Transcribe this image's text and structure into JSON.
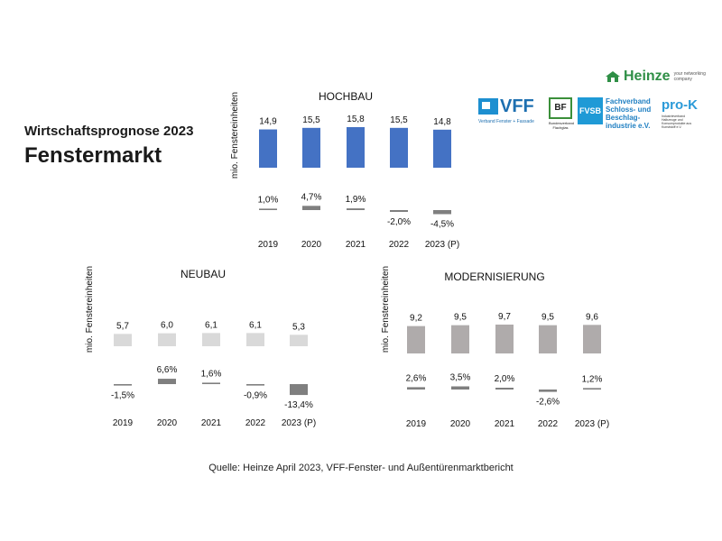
{
  "headline": {
    "subtitle": "Wirtschaftsprognose 2023",
    "title": "Fenstermarkt"
  },
  "source": "Quelle: Heinze April 2023, VFF-Fenster- und Außentürenmarktbericht",
  "logos": {
    "heinze": {
      "name": "Heinze",
      "tagline": "your networking company"
    },
    "vff": {
      "name": "VFF",
      "caption": "Verband Fenster + Fassade"
    },
    "bf": {
      "name": "BF",
      "caption": "Bundesverband Flachglas"
    },
    "fvsb": {
      "name": "FVSB",
      "caption": "Fachverband Schloss- und Beschlag-industrie e.V."
    },
    "prox": {
      "name": "pro-K",
      "caption": "Industrieverband Halbzeuge und Konsumprodukte aus Kunststoff e.V."
    }
  },
  "colors": {
    "hochbau_bar": "#4472C4",
    "neubau_bar": "#D9D9D9",
    "modernisierung_bar": "#AFABAB",
    "change_bar": "#7F7F7F"
  },
  "chart_data": [
    {
      "type": "bar",
      "title": "HOCHBAU",
      "ylabel": "mio. Fenstereinheiten",
      "categories": [
        "2019",
        "2020",
        "2021",
        "2022",
        "2023 (P)"
      ],
      "values": [
        14.9,
        15.5,
        15.8,
        15.5,
        14.8
      ],
      "value_labels": [
        "14,9",
        "15,5",
        "15,8",
        "15,5",
        "14,8"
      ],
      "changes": [
        1.0,
        4.7,
        1.9,
        -2.0,
        -4.5
      ],
      "change_labels": [
        "1,0%",
        "4,7%",
        "1,9%",
        "-2,0%",
        "-4,5%"
      ]
    },
    {
      "type": "bar",
      "title": "NEUBAU",
      "ylabel": "mio. Fenstereinheiten",
      "categories": [
        "2019",
        "2020",
        "2021",
        "2022",
        "2023 (P)"
      ],
      "values": [
        5.7,
        6.0,
        6.1,
        6.1,
        5.3
      ],
      "value_labels": [
        "5,7",
        "6,0",
        "6,1",
        "6,1",
        "5,3"
      ],
      "changes": [
        -1.5,
        6.6,
        1.6,
        -0.9,
        -13.4
      ],
      "change_labels": [
        "-1,5%",
        "6,6%",
        "1,6%",
        "-0,9%",
        "-13,4%"
      ]
    },
    {
      "type": "bar",
      "title": "MODERNISIERUNG",
      "ylabel": "mio. Fenstereinheiten",
      "categories": [
        "2019",
        "2020",
        "2021",
        "2022",
        "2023 (P)"
      ],
      "values": [
        9.2,
        9.5,
        9.7,
        9.5,
        9.6
      ],
      "value_labels": [
        "9,2",
        "9,5",
        "9,7",
        "9,5",
        "9,6"
      ],
      "changes": [
        2.6,
        3.5,
        2.0,
        -2.6,
        1.2
      ],
      "change_labels": [
        "2,6%",
        "3,5%",
        "2,0%",
        "-2,6%",
        "1,2%"
      ]
    }
  ]
}
